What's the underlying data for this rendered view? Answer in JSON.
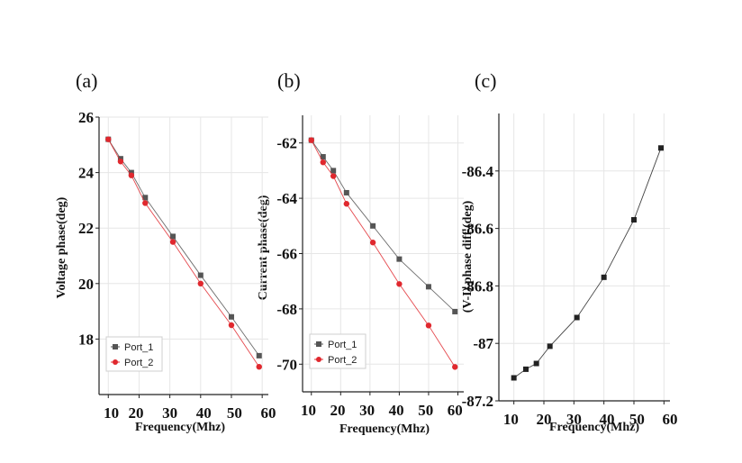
{
  "chart_data": [
    {
      "type": "line",
      "panel_label": "(a)",
      "xlabel": "Frequency(Mhz)",
      "ylabel": "Voltage phase(deg)",
      "xlim": [
        7,
        62
      ],
      "ylim": [
        16,
        26
      ],
      "xticks": [
        "10",
        "20",
        "30",
        "40",
        "50",
        "60"
      ],
      "yticks": [
        "18",
        "20",
        "22",
        "24",
        "26"
      ],
      "grid": true,
      "legend_position": "bottom-left",
      "series": [
        {
          "name": "Port_1",
          "color": "#555555",
          "marker": "square",
          "x": [
            10,
            14,
            17.5,
            22,
            31,
            40,
            50,
            59
          ],
          "y": [
            25.2,
            24.5,
            24.0,
            23.1,
            21.7,
            20.3,
            18.8,
            17.4
          ]
        },
        {
          "name": "Port_2",
          "color": "#e0282e",
          "marker": "circle",
          "x": [
            10,
            14,
            17.5,
            22,
            31,
            40,
            50,
            59
          ],
          "y": [
            25.2,
            24.4,
            23.9,
            22.9,
            21.5,
            20.0,
            18.5,
            17.0
          ]
        }
      ]
    },
    {
      "type": "line",
      "panel_label": "(b)",
      "xlabel": "Frequency(Mhz)",
      "ylabel": "Current phase(deg)",
      "xlim": [
        7,
        62
      ],
      "ylim": [
        -71,
        -61
      ],
      "xticks": [
        "10",
        "20",
        "30",
        "40",
        "50",
        "60"
      ],
      "yticks": [
        "-62",
        "-64",
        "-66",
        "-68",
        "-70"
      ],
      "grid": true,
      "legend_position": "bottom-left",
      "series": [
        {
          "name": "Port_1",
          "color": "#555555",
          "marker": "square",
          "x": [
            10,
            14,
            17.5,
            22,
            31,
            40,
            50,
            59
          ],
          "y": [
            -61.9,
            -62.5,
            -63.0,
            -63.8,
            -65.0,
            -66.2,
            -67.2,
            -68.1
          ]
        },
        {
          "name": "Port_2",
          "color": "#e0282e",
          "marker": "circle",
          "x": [
            10,
            14,
            17.5,
            22,
            31,
            40,
            50,
            59
          ],
          "y": [
            -61.9,
            -62.7,
            -63.2,
            -64.2,
            -65.6,
            -67.1,
            -68.6,
            -70.1
          ]
        }
      ]
    },
    {
      "type": "line",
      "panel_label": "(c)",
      "xlabel": "Frequency(Mhz)",
      "ylabel": "(V-I) phase diff (deg)",
      "xlim": [
        5,
        62
      ],
      "ylim": [
        -87.2,
        -86.2
      ],
      "xticks": [
        "10",
        "20",
        "30",
        "40",
        "50",
        "60"
      ],
      "yticks": [
        "-87.2",
        "-87",
        "-86.8",
        "-86.6",
        "-86.4"
      ],
      "ytick_values": [
        -87.2,
        -87.0,
        -86.8,
        -86.6,
        -86.4
      ],
      "grid": true,
      "legend_position": "none",
      "series": [
        {
          "color": "#222222",
          "marker": "square",
          "x": [
            10,
            14,
            17.5,
            22,
            31,
            40,
            50,
            59
          ],
          "y": [
            -87.12,
            -87.09,
            -87.07,
            -87.01,
            -86.91,
            -86.77,
            -86.57,
            -86.32
          ]
        }
      ]
    }
  ]
}
